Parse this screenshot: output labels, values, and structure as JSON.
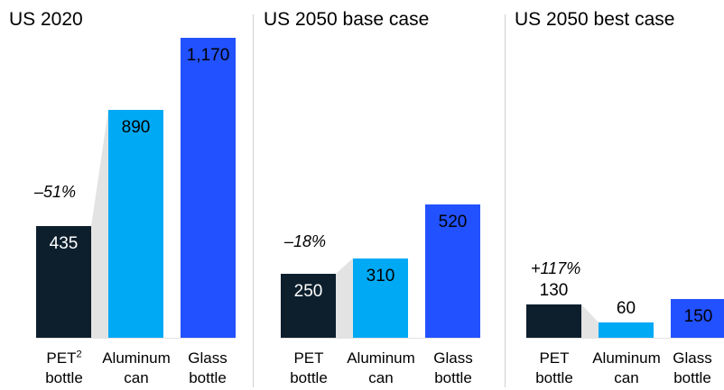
{
  "colors": {
    "pet": "#0d1f2d",
    "aluminum": "#00a9f4",
    "glass": "#2251ff",
    "connector": "#e3e3e3"
  },
  "chart_data": [
    {
      "type": "bar",
      "title": "US 2020",
      "categories": [
        "PET² bottle",
        "Aluminum can",
        "Glass bottle"
      ],
      "values": [
        435,
        890,
        1170
      ],
      "value_labels": [
        "435",
        "890",
        "1,170"
      ],
      "annotation": "–51%",
      "ylim": [
        0,
        1170
      ]
    },
    {
      "type": "bar",
      "title": "US 2050 base case",
      "categories": [
        "PET bottle",
        "Aluminum can",
        "Glass bottle"
      ],
      "values": [
        250,
        310,
        520
      ],
      "value_labels": [
        "250",
        "310",
        "520"
      ],
      "annotation": "–18%",
      "ylim": [
        0,
        1170
      ]
    },
    {
      "type": "bar",
      "title": "US 2050 best case",
      "categories": [
        "PET bottle",
        "Aluminum can",
        "Glass bottle"
      ],
      "values": [
        130,
        60,
        150
      ],
      "value_labels": [
        "130",
        "60",
        "150"
      ],
      "annotation": "+117%",
      "ylim": [
        0,
        1170
      ]
    }
  ],
  "cat_labels": {
    "pet_first_line": "PET",
    "pet_footnote": "2",
    "bottle": "bottle",
    "aluminum": "Aluminum",
    "can": "can",
    "glass": "Glass"
  }
}
